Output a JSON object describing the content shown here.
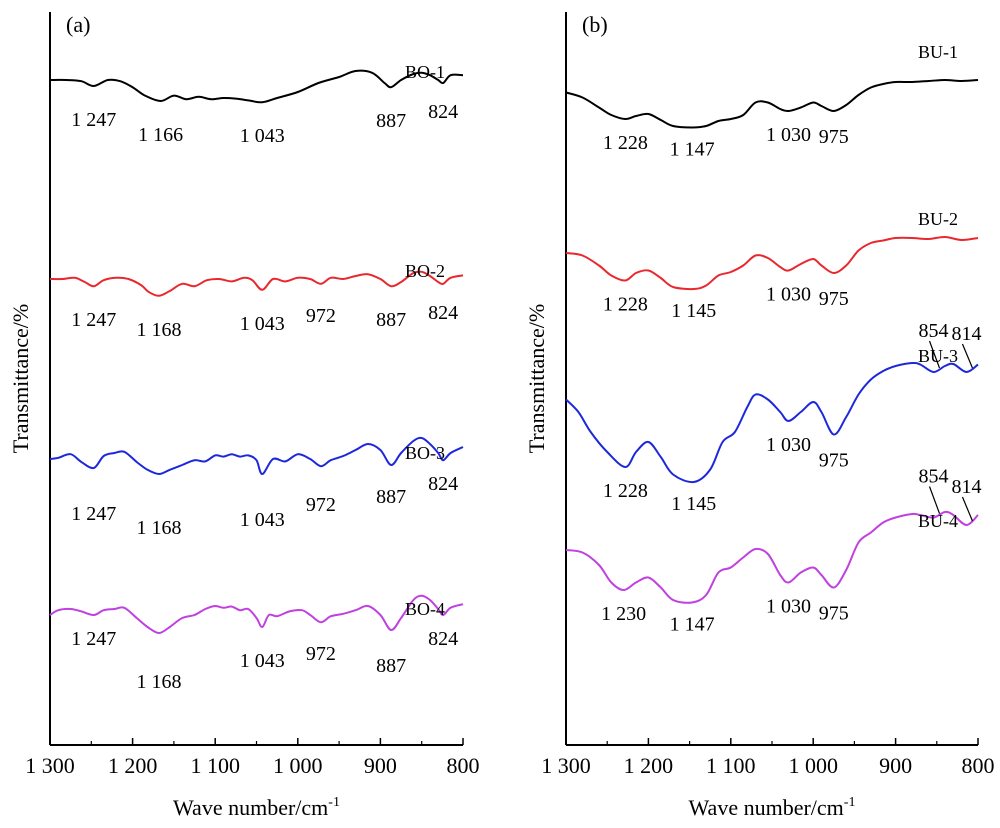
{
  "chart_data": [
    {
      "type": "line",
      "panel_label": "(a)",
      "xlabel": "Wave number/cm",
      "xlabel_sup": "-1",
      "ylabel": "Transmittance/%",
      "xlim": [
        1300,
        800
      ],
      "x_reversed": true,
      "xticks": [
        1300,
        1200,
        1100,
        1000,
        900,
        800
      ],
      "xtick_labels": [
        "1 300",
        "1 200",
        "1 100",
        "1 000",
        "900",
        "800"
      ],
      "grid": false,
      "series": [
        {
          "name": "BO-1",
          "color": "#000000",
          "offset": 3,
          "x": [
            1300,
            1280,
            1262,
            1247,
            1230,
            1215,
            1200,
            1185,
            1166,
            1150,
            1135,
            1120,
            1105,
            1090,
            1075,
            1060,
            1043,
            1025,
            1000,
            975,
            950,
            930,
            910,
            895,
            887,
            875,
            860,
            850,
            840,
            830,
            824,
            815,
            800
          ],
          "y": [
            0.3,
            0.3,
            0.28,
            0.2,
            0.3,
            0.28,
            0.18,
            0.04,
            -0.05,
            0.04,
            -0.02,
            0.02,
            -0.02,
            0.0,
            -0.01,
            -0.04,
            -0.07,
            0.0,
            0.1,
            0.25,
            0.35,
            0.45,
            0.42,
            0.25,
            0.18,
            0.3,
            0.4,
            0.42,
            0.38,
            0.3,
            0.25,
            0.38,
            0.38
          ],
          "peaks": [
            {
              "x": 1247,
              "label": "1 247"
            },
            {
              "x": 1166,
              "label": "1 166"
            },
            {
              "x": 1043,
              "label": "1 043"
            },
            {
              "x": 887,
              "label": "887"
            },
            {
              "x": 824,
              "label": "824"
            }
          ]
        },
        {
          "name": "BO-2",
          "color": "#e8282e",
          "offset": 2,
          "x": [
            1300,
            1285,
            1270,
            1258,
            1247,
            1235,
            1220,
            1205,
            1190,
            1180,
            1168,
            1155,
            1140,
            1125,
            1110,
            1095,
            1080,
            1065,
            1055,
            1043,
            1030,
            1015,
            1000,
            985,
            972,
            960,
            945,
            930,
            915,
            900,
            887,
            875,
            860,
            850,
            840,
            830,
            824,
            815,
            800
          ],
          "y": [
            0.3,
            0.3,
            0.32,
            0.25,
            0.18,
            0.28,
            0.32,
            0.3,
            0.2,
            0.08,
            0.02,
            0.1,
            0.22,
            0.18,
            0.28,
            0.3,
            0.26,
            0.32,
            0.28,
            0.12,
            0.3,
            0.26,
            0.32,
            0.3,
            0.22,
            0.32,
            0.3,
            0.35,
            0.38,
            0.3,
            0.18,
            0.25,
            0.4,
            0.42,
            0.35,
            0.25,
            0.22,
            0.32,
            0.36
          ],
          "peaks": [
            {
              "x": 1247,
              "label": "1 247"
            },
            {
              "x": 1168,
              "label": "1 168"
            },
            {
              "x": 1043,
              "label": "1 043"
            },
            {
              "x": 972,
              "label": "972"
            },
            {
              "x": 887,
              "label": "887"
            },
            {
              "x": 824,
              "label": "824"
            }
          ]
        },
        {
          "name": "BO-3",
          "color": "#1d28dc",
          "offset": 1,
          "x": [
            1300,
            1290,
            1275,
            1262,
            1247,
            1235,
            1222,
            1210,
            1195,
            1182,
            1168,
            1155,
            1140,
            1125,
            1112,
            1100,
            1090,
            1080,
            1070,
            1060,
            1050,
            1043,
            1030,
            1015,
            1000,
            985,
            972,
            960,
            945,
            930,
            915,
            900,
            887,
            875,
            860,
            850,
            840,
            830,
            824,
            815,
            800
          ],
          "y": [
            0.3,
            0.32,
            0.38,
            0.25,
            0.15,
            0.35,
            0.4,
            0.42,
            0.25,
            0.12,
            0.05,
            0.12,
            0.2,
            0.28,
            0.26,
            0.36,
            0.34,
            0.38,
            0.34,
            0.36,
            0.28,
            0.05,
            0.3,
            0.26,
            0.38,
            0.3,
            0.18,
            0.28,
            0.35,
            0.45,
            0.55,
            0.45,
            0.2,
            0.4,
            0.6,
            0.65,
            0.55,
            0.4,
            0.28,
            0.4,
            0.5
          ],
          "peaks": [
            {
              "x": 1247,
              "label": "1 247"
            },
            {
              "x": 1168,
              "label": "1 168"
            },
            {
              "x": 1043,
              "label": "1 043"
            },
            {
              "x": 972,
              "label": "972"
            },
            {
              "x": 887,
              "label": "887"
            },
            {
              "x": 824,
              "label": "824"
            }
          ]
        },
        {
          "name": "BO-4",
          "color": "#c040e0",
          "offset": 0,
          "x": [
            1300,
            1290,
            1275,
            1262,
            1247,
            1235,
            1222,
            1210,
            1195,
            1182,
            1168,
            1155,
            1140,
            1125,
            1112,
            1100,
            1090,
            1080,
            1070,
            1060,
            1050,
            1043,
            1035,
            1025,
            1010,
            995,
            985,
            972,
            960,
            945,
            930,
            915,
            900,
            887,
            875,
            860,
            850,
            840,
            830,
            824,
            815,
            800
          ],
          "y": [
            0.3,
            0.38,
            0.4,
            0.36,
            0.3,
            0.38,
            0.4,
            0.42,
            0.25,
            0.1,
            0.0,
            0.1,
            0.25,
            0.3,
            0.4,
            0.45,
            0.42,
            0.44,
            0.38,
            0.4,
            0.25,
            0.1,
            0.3,
            0.28,
            0.36,
            0.38,
            0.3,
            0.18,
            0.28,
            0.32,
            0.38,
            0.45,
            0.3,
            0.05,
            0.25,
            0.55,
            0.62,
            0.55,
            0.4,
            0.3,
            0.42,
            0.48
          ],
          "peaks": [
            {
              "x": 1247,
              "label": "1 247"
            },
            {
              "x": 1168,
              "label": "1 168"
            },
            {
              "x": 1043,
              "label": "1 043"
            },
            {
              "x": 972,
              "label": "972"
            },
            {
              "x": 887,
              "label": "887"
            },
            {
              "x": 824,
              "label": "824"
            }
          ]
        }
      ]
    },
    {
      "type": "line",
      "panel_label": "(b)",
      "xlabel": "Wave number/cm",
      "xlabel_sup": "-1",
      "ylabel": "Transmittance/%",
      "xlim": [
        1300,
        800
      ],
      "x_reversed": true,
      "xticks": [
        1300,
        1200,
        1100,
        1000,
        900,
        800
      ],
      "xtick_labels": [
        "1 300",
        "1 200",
        "1 100",
        "1 000",
        "900",
        "800"
      ],
      "grid": false,
      "series": [
        {
          "name": "BU-1",
          "color": "#000000",
          "offset": 3,
          "x": [
            1300,
            1280,
            1260,
            1245,
            1228,
            1215,
            1200,
            1185,
            1170,
            1147,
            1130,
            1115,
            1100,
            1085,
            1070,
            1055,
            1040,
            1030,
            1015,
            1000,
            990,
            975,
            960,
            945,
            930,
            915,
            900,
            880,
            860,
            840,
            820,
            800
          ],
          "y": [
            0.75,
            0.65,
            0.45,
            0.3,
            0.22,
            0.28,
            0.32,
            0.2,
            0.08,
            0.05,
            0.08,
            0.18,
            0.22,
            0.3,
            0.55,
            0.55,
            0.42,
            0.38,
            0.45,
            0.55,
            0.48,
            0.38,
            0.5,
            0.7,
            0.85,
            0.92,
            0.96,
            0.96,
            0.98,
            1.0,
            0.98,
            1.0
          ],
          "peaks": [
            {
              "x": 1228,
              "label": "1 228"
            },
            {
              "x": 1147,
              "label": "1 147"
            },
            {
              "x": 1030,
              "label": "1 030"
            },
            {
              "x": 975,
              "label": "975"
            }
          ]
        },
        {
          "name": "BU-2",
          "color": "#e8282e",
          "offset": 2,
          "x": [
            1300,
            1280,
            1260,
            1245,
            1228,
            1215,
            1200,
            1185,
            1170,
            1145,
            1130,
            1115,
            1100,
            1085,
            1070,
            1055,
            1040,
            1030,
            1015,
            1000,
            990,
            975,
            960,
            945,
            930,
            915,
            900,
            880,
            860,
            840,
            820,
            800
          ],
          "y": [
            0.8,
            0.75,
            0.55,
            0.35,
            0.25,
            0.4,
            0.45,
            0.3,
            0.12,
            0.08,
            0.15,
            0.35,
            0.42,
            0.55,
            0.75,
            0.7,
            0.52,
            0.45,
            0.58,
            0.68,
            0.55,
            0.4,
            0.55,
            0.85,
            1.0,
            1.05,
            1.1,
            1.1,
            1.08,
            1.12,
            1.06,
            1.1
          ],
          "peaks": [
            {
              "x": 1228,
              "label": "1 228"
            },
            {
              "x": 1145,
              "label": "1 145"
            },
            {
              "x": 1030,
              "label": "1 030"
            },
            {
              "x": 975,
              "label": "975"
            }
          ]
        },
        {
          "name": "BU-3",
          "color": "#1d28dc",
          "offset": 1,
          "x": [
            1300,
            1285,
            1270,
            1250,
            1228,
            1215,
            1200,
            1185,
            1170,
            1145,
            1125,
            1110,
            1095,
            1080,
            1070,
            1055,
            1040,
            1030,
            1015,
            1000,
            990,
            975,
            960,
            945,
            930,
            915,
            900,
            880,
            870,
            854,
            840,
            830,
            814,
            800
          ],
          "y": [
            1.25,
            1.0,
            0.6,
            0.2,
            -0.1,
            0.2,
            0.4,
            0.1,
            -0.25,
            -0.4,
            -0.15,
            0.4,
            0.6,
            1.1,
            1.35,
            1.25,
            1.0,
            0.82,
            1.0,
            1.2,
            1.0,
            0.55,
            0.9,
            1.35,
            1.65,
            1.82,
            1.92,
            1.98,
            1.95,
            1.8,
            1.92,
            1.96,
            1.8,
            1.95
          ],
          "peaks": [
            {
              "x": 1228,
              "label": "1 228"
            },
            {
              "x": 1145,
              "label": "1 145"
            },
            {
              "x": 1030,
              "label": "1 030"
            },
            {
              "x": 975,
              "label": "975"
            },
            {
              "x": 854,
              "label": "854"
            },
            {
              "x": 814,
              "label": "814"
            }
          ]
        },
        {
          "name": "BU-4",
          "color": "#c040e0",
          "offset": 0,
          "x": [
            1300,
            1280,
            1260,
            1245,
            1230,
            1215,
            1200,
            1185,
            1170,
            1147,
            1130,
            1115,
            1100,
            1085,
            1070,
            1055,
            1040,
            1030,
            1015,
            1000,
            990,
            975,
            960,
            945,
            930,
            915,
            900,
            880,
            870,
            854,
            840,
            830,
            814,
            800
          ],
          "y": [
            1.2,
            1.15,
            0.9,
            0.55,
            0.4,
            0.55,
            0.65,
            0.45,
            0.2,
            0.15,
            0.3,
            0.75,
            0.85,
            1.05,
            1.22,
            1.12,
            0.7,
            0.55,
            0.75,
            0.85,
            0.7,
            0.45,
            0.8,
            1.35,
            1.55,
            1.75,
            1.85,
            1.92,
            1.9,
            1.85,
            1.96,
            1.9,
            1.7,
            1.9
          ],
          "peaks": [
            {
              "x": 1230,
              "label": "1 230"
            },
            {
              "x": 1147,
              "label": "1 147"
            },
            {
              "x": 1030,
              "label": "1 030"
            },
            {
              "x": 975,
              "label": "975"
            },
            {
              "x": 854,
              "label": "854"
            },
            {
              "x": 814,
              "label": "814"
            }
          ]
        }
      ]
    }
  ]
}
